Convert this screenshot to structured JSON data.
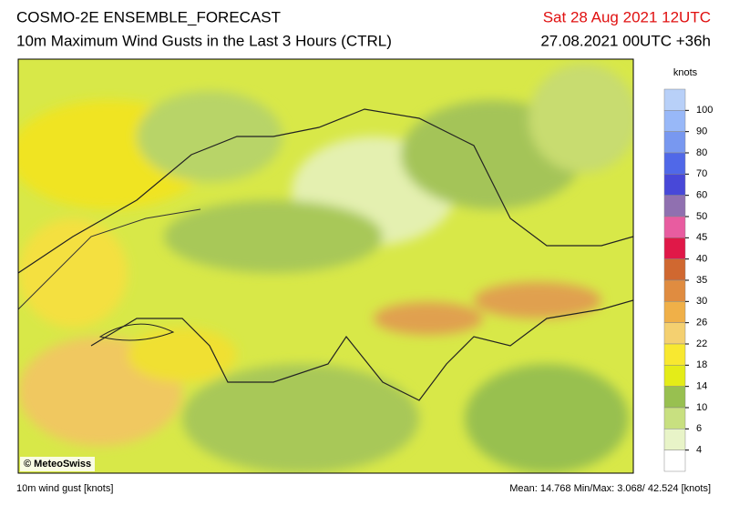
{
  "header": {
    "title": "COSMO-2E ENSEMBLE_FORECAST",
    "subtitle": "10m Maximum Wind Gusts in the Last 3 Hours (CTRL)",
    "valid_time": "Sat 28 Aug 2021 12UTC",
    "run_time": "27.08.2021 00UTC +36h"
  },
  "map": {
    "copyright": "© MeteoSwiss"
  },
  "colorbar": {
    "unit": "knots",
    "ticks": [
      100,
      90,
      80,
      70,
      60,
      50,
      45,
      40,
      35,
      30,
      26,
      22,
      18,
      14,
      10,
      6,
      4
    ],
    "colors": [
      "#b8d0f8",
      "#98b8f8",
      "#7898f0",
      "#5068e8",
      "#4848d8",
      "#9070b0",
      "#e85ca0",
      "#e01848",
      "#d06830",
      "#e08c40",
      "#f0b048",
      "#f4d070",
      "#f8e830",
      "#e4ec18",
      "#98c050",
      "#c8e080",
      "#e8f4c8",
      "#ffffff"
    ]
  },
  "footer": {
    "variable": "10m wind gust [knots]",
    "stats": "Mean: 14.768 Min/Max: 3.068/ 42.524 [knots]"
  }
}
